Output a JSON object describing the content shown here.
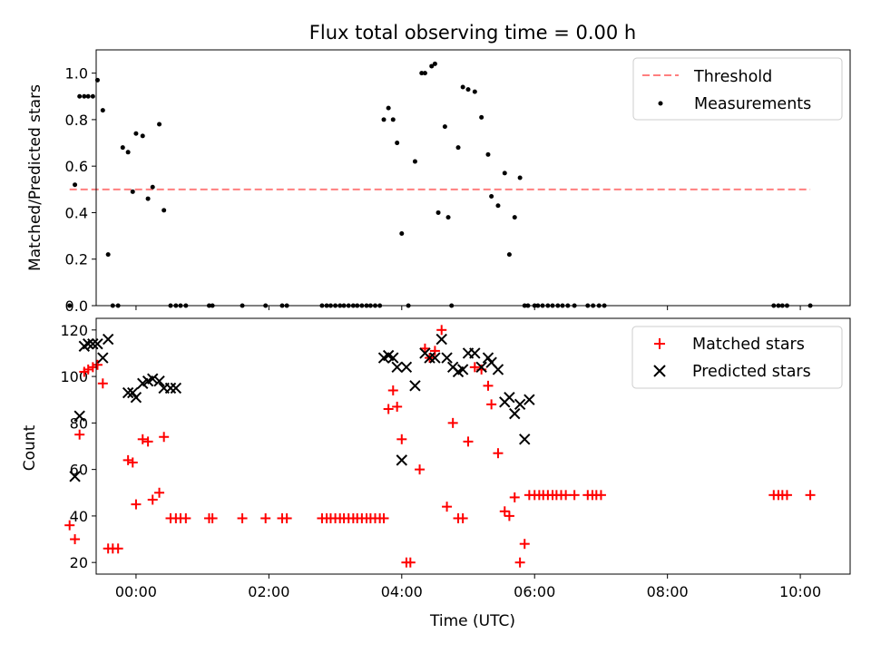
{
  "chart_data": [
    {
      "type": "scatter",
      "title": "Flux total observing time = 0.00 h",
      "xlabel": "",
      "ylabel": "Matched/Predicted stars",
      "xlim": [
        -0.6,
        10.75
      ],
      "ylim": [
        0,
        1.1
      ],
      "yticks": [
        0.0,
        0.2,
        0.4,
        0.6,
        0.8,
        1.0
      ],
      "ytick_labels": [
        "0.0",
        "0.2",
        "0.4",
        "0.6",
        "0.8",
        "1.0"
      ],
      "xticks": [
        0,
        2,
        4,
        6,
        8,
        10
      ],
      "grid": false,
      "legend_position": "top-right",
      "series": [
        {
          "name": "Threshold",
          "kind": "line",
          "style": "dashed",
          "color": "#ff7f7f",
          "x": [
            -1.0,
            10.15
          ],
          "y": [
            0.5,
            0.5
          ]
        },
        {
          "name": "Measurements",
          "kind": "scatter",
          "color": "#000000",
          "x": [
            -1.0,
            -0.92,
            -0.85,
            -0.78,
            -0.72,
            -0.65,
            -0.58,
            -0.5,
            -0.42,
            -0.35,
            -0.27,
            -0.2,
            -0.12,
            -0.05,
            0.0,
            0.1,
            0.18,
            0.25,
            0.35,
            0.42,
            0.52,
            0.6,
            0.67,
            0.75,
            1.1,
            1.15,
            1.6,
            1.95,
            2.2,
            2.27,
            2.8,
            2.87,
            2.93,
            3.0,
            3.07,
            3.13,
            3.2,
            3.27,
            3.33,
            3.4,
            3.47,
            3.53,
            3.6,
            3.67,
            3.73,
            3.8,
            3.87,
            3.93,
            4.0,
            4.1,
            4.2,
            4.3,
            4.35,
            4.45,
            4.5,
            4.55,
            4.65,
            4.7,
            4.75,
            4.85,
            4.92,
            5.0,
            5.1,
            5.2,
            5.3,
            5.35,
            5.45,
            5.55,
            5.62,
            5.7,
            5.78,
            5.85,
            5.9,
            6.0,
            6.05,
            6.12,
            6.2,
            6.27,
            6.35,
            6.42,
            6.5,
            6.6,
            6.8,
            6.88,
            6.97,
            7.05,
            9.6,
            9.67,
            9.73,
            9.8,
            10.15
          ],
          "y": [
            0.0,
            0.52,
            0.9,
            0.9,
            0.9,
            0.9,
            0.97,
            0.84,
            0.22,
            0.0,
            0.0,
            0.68,
            0.66,
            0.49,
            0.74,
            0.73,
            0.46,
            0.51,
            0.78,
            0.41,
            0.0,
            0.0,
            0.0,
            0.0,
            0.0,
            0.0,
            0.0,
            0.0,
            0.0,
            0.0,
            0.0,
            0.0,
            0.0,
            0.0,
            0.0,
            0.0,
            0.0,
            0.0,
            0.0,
            0.0,
            0.0,
            0.0,
            0.0,
            0.0,
            0.8,
            0.85,
            0.8,
            0.7,
            0.31,
            0.0,
            0.62,
            1.0,
            1.0,
            1.03,
            1.04,
            0.4,
            0.77,
            0.38,
            0.0,
            0.68,
            0.94,
            0.93,
            0.92,
            0.81,
            0.65,
            0.47,
            0.43,
            0.57,
            0.22,
            0.38,
            0.55,
            0.0,
            0.0,
            0.0,
            0.0,
            0.0,
            0.0,
            0.0,
            0.0,
            0.0,
            0.0,
            0.0,
            0.0,
            0.0,
            0.0,
            0.0,
            0.0,
            0.0,
            0.0,
            0.0,
            0.0
          ]
        }
      ]
    },
    {
      "type": "scatter",
      "title": "",
      "xlabel": "Time (UTC)",
      "ylabel": "Count",
      "xlim": [
        -0.6,
        10.75
      ],
      "ylim": [
        15,
        125
      ],
      "yticks": [
        20,
        40,
        60,
        80,
        100,
        120
      ],
      "ytick_labels": [
        "20",
        "40",
        "60",
        "80",
        "100",
        "120"
      ],
      "xticks": [
        0,
        2,
        4,
        6,
        8,
        10
      ],
      "xtick_labels": [
        "00:00",
        "02:00",
        "04:00",
        "06:00",
        "08:00",
        "10:00"
      ],
      "grid": false,
      "legend_position": "top-right",
      "series": [
        {
          "name": "Matched stars",
          "kind": "scatter",
          "marker": "+",
          "color": "#ff0000",
          "x": [
            -1.0,
            -0.92,
            -0.85,
            -0.78,
            -0.72,
            -0.65,
            -0.58,
            -0.5,
            -0.42,
            -0.35,
            -0.27,
            -0.12,
            -0.05,
            0.0,
            0.1,
            0.18,
            0.25,
            0.35,
            0.42,
            0.52,
            0.6,
            0.67,
            0.75,
            1.1,
            1.15,
            1.6,
            1.95,
            2.2,
            2.27,
            2.8,
            2.87,
            2.93,
            3.0,
            3.07,
            3.13,
            3.2,
            3.27,
            3.33,
            3.4,
            3.47,
            3.53,
            3.6,
            3.67,
            3.73,
            3.8,
            3.87,
            3.93,
            4.0,
            4.07,
            4.13,
            4.27,
            4.35,
            4.42,
            4.5,
            4.6,
            4.68,
            4.77,
            4.85,
            4.92,
            5.0,
            5.1,
            5.2,
            5.3,
            5.35,
            5.45,
            5.55,
            5.62,
            5.7,
            5.78,
            5.85,
            5.92,
            6.0,
            6.07,
            6.13,
            6.2,
            6.27,
            6.33,
            6.4,
            6.47,
            6.6,
            6.8,
            6.87,
            6.93,
            7.0,
            9.6,
            9.67,
            9.73,
            9.8,
            10.15
          ],
          "y": [
            36,
            30,
            75,
            102,
            103,
            104,
            105,
            97,
            26,
            26,
            26,
            64,
            63,
            45,
            73,
            72,
            47,
            50,
            74,
            39,
            39,
            39,
            39,
            39,
            39,
            39,
            39,
            39,
            39,
            39,
            39,
            39,
            39,
            39,
            39,
            39,
            39,
            39,
            39,
            39,
            39,
            39,
            39,
            39,
            86,
            94,
            87,
            73,
            20,
            20,
            60,
            112,
            108,
            111,
            120,
            44,
            80,
            39,
            39,
            72,
            104,
            103,
            96,
            88,
            67,
            42,
            40,
            48,
            20,
            28,
            49,
            49,
            49,
            49,
            49,
            49,
            49,
            49,
            49,
            49,
            49,
            49,
            49,
            49,
            49,
            49,
            49,
            49,
            49
          ]
        },
        {
          "name": "Predicted stars",
          "kind": "scatter",
          "marker": "x",
          "color": "#000000",
          "x": [
            -0.92,
            -0.85,
            -0.78,
            -0.72,
            -0.65,
            -0.58,
            -0.5,
            -0.42,
            -0.12,
            -0.05,
            0.0,
            0.1,
            0.18,
            0.25,
            0.35,
            0.42,
            0.52,
            0.6,
            3.73,
            3.8,
            3.87,
            3.93,
            4.0,
            4.07,
            4.2,
            4.35,
            4.42,
            4.5,
            4.6,
            4.68,
            4.77,
            4.85,
            4.92,
            5.0,
            5.1,
            5.2,
            5.3,
            5.35,
            5.45,
            5.55,
            5.62,
            5.7,
            5.78,
            5.85,
            5.92
          ],
          "y": [
            57,
            83,
            113,
            114,
            114,
            114,
            108,
            116,
            93,
            93,
            91,
            97,
            98,
            99,
            98,
            95,
            95,
            95,
            108,
            109,
            108,
            104,
            64,
            104,
            96,
            110,
            108,
            108,
            116,
            108,
            104,
            102,
            103,
            110,
            110,
            104,
            108,
            106,
            103,
            89,
            91,
            84,
            88,
            73,
            90
          ]
        }
      ]
    }
  ]
}
